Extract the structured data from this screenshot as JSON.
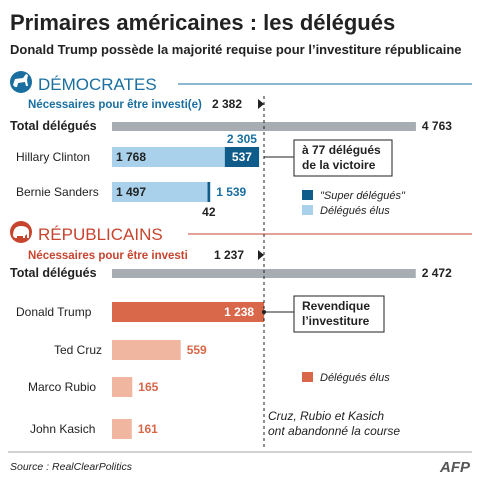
{
  "header": {
    "title": "Primaires américaines : les délégués",
    "subtitle": "Donald Trump possède la majorité requise pour l’investiture républicaine"
  },
  "colors": {
    "dem_blue": "#1a6fa0",
    "dem_light": "#a9d1ec",
    "dem_dark": "#0f5c8a",
    "rep_red": "#d9674a",
    "rep_light": "#f1b69f",
    "rep_title": "#c7442f",
    "total_grey": "#a7adb2",
    "text": "#222222"
  },
  "icons": {
    "democrats": "donkey-icon",
    "republicans": "elephant-icon",
    "threshold": "triangle-marker-icon"
  },
  "footer": {
    "source": "Source : RealClearPolitics",
    "logo": "AFP"
  },
  "chart_data": [
    {
      "type": "bar",
      "party": "DÉMOCRATES",
      "required_label": "Nécessaires pour être investi(e)",
      "required_value": 2382,
      "required_text": "2 382",
      "total_label": "Total délégués",
      "total_value": 4763,
      "total_text": "4 763",
      "candidates": [
        {
          "name": "Hillary Clinton",
          "pledged": 1768,
          "pledged_text": "1 768",
          "super": 537,
          "super_text": "537",
          "sum": 2305,
          "sum_text": "2 305"
        },
        {
          "name": "Bernie Sanders",
          "pledged": 1497,
          "pledged_text": "1 497",
          "super": 42,
          "super_text": "42",
          "sum": 1539,
          "sum_text": "1 539"
        }
      ],
      "callout": "à 77 délégués de la victoire",
      "legend": [
        {
          "label": "\"Super délégués\"",
          "color": "#0f5c8a"
        },
        {
          "label": "Délégués élus",
          "color": "#a9d1ec"
        }
      ]
    },
    {
      "type": "bar",
      "party": "RÉPUBLICAINS",
      "required_label": "Nécessaires pour être investi",
      "required_value": 1237,
      "required_text": "1 237",
      "total_label": "Total délégués",
      "total_value": 2472,
      "total_text": "2 472",
      "candidates": [
        {
          "name": "Donald Trump",
          "pledged": 1238,
          "pledged_text": "1 238"
        },
        {
          "name": "Ted Cruz",
          "pledged": 559,
          "pledged_text": "559"
        },
        {
          "name": "Marco Rubio",
          "pledged": 165,
          "pledged_text": "165"
        },
        {
          "name": "John Kasich",
          "pledged": 161,
          "pledged_text": "161"
        }
      ],
      "callout": "Revendique l’investiture",
      "legend": [
        {
          "label": "Délégués élus",
          "color": "#d9674a"
        }
      ],
      "note": "Cruz, Rubio et Kasich ont abandonné la course"
    }
  ]
}
